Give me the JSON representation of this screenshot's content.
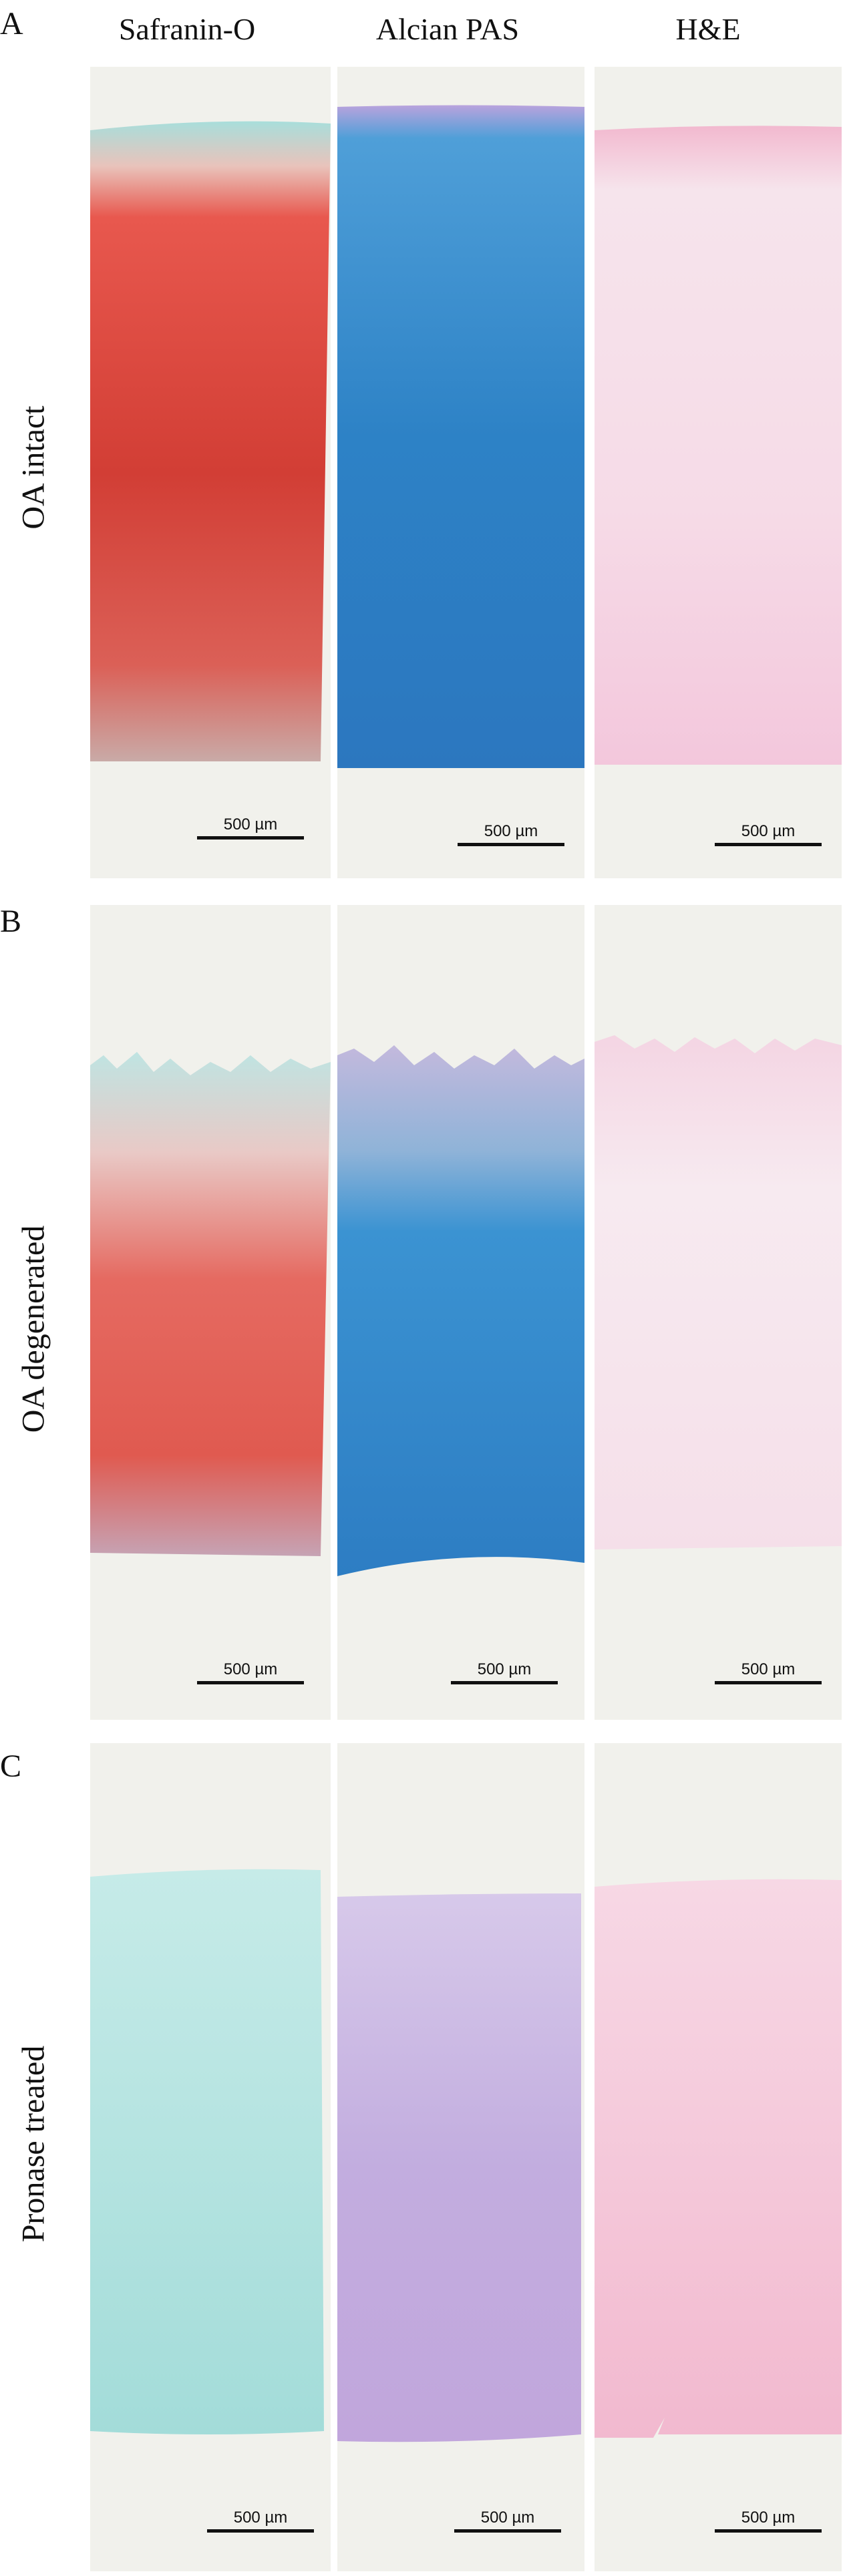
{
  "columns": [
    "Safranin-O",
    "Alcian PAS",
    "H&E"
  ],
  "rows": [
    {
      "letter": "A",
      "label": "OA intact"
    },
    {
      "letter": "B",
      "label": "OA degenerated"
    },
    {
      "letter": "C",
      "label": "Pronase treated"
    }
  ],
  "scale_bar_label": "500 µm",
  "stain_colors": {
    "safranin_red": "#d9483f",
    "safranin_teal": "#a8dedb",
    "alcian_blue": "#2f86c9",
    "alcian_purple": "#b9a3dd",
    "he_pink": "#f4cde0",
    "slide_background": "#f1f1ec"
  }
}
